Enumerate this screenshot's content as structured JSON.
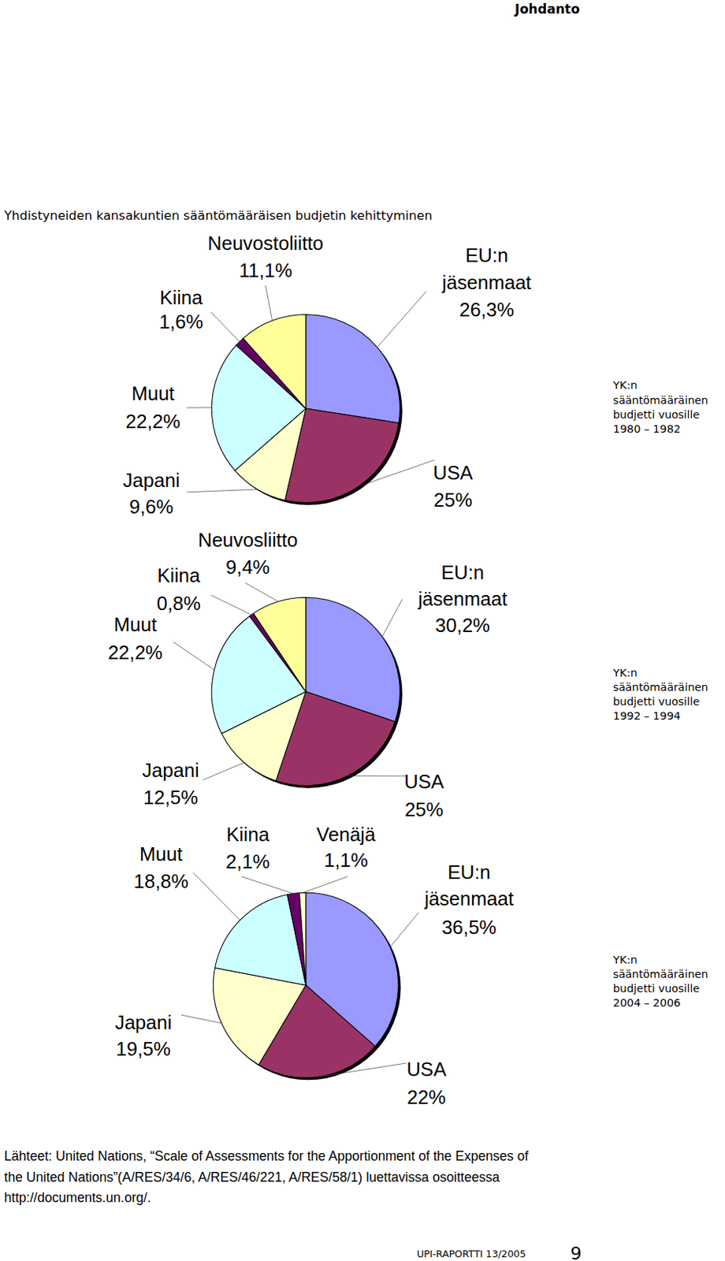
{
  "page": {
    "header": "Johdanto",
    "caption": "Yhdistyneiden kansakuntien sääntömääräisen budjetin kehittyminen",
    "source": "Lähteet: United Nations, “Scale of Assessments for the Apportionment of the Expenses of the United Nations”(A/RES/34/6, A/RES/46/221, A/RES/58/1) luettavissa osoitteessa http://documents.un.org/.",
    "footer": "UPI-RAPORTTI 13/2005",
    "page_number": 9
  },
  "chart_data": [
    {
      "type": "pie",
      "title": "YK:n sääntömääräinen budjetti vuosille 1980 – 1982",
      "categories": [
        "EU:n jäsenmaat",
        "USA",
        "Japani",
        "Muut",
        "Kiina",
        "Neuvostoliitto"
      ],
      "values": [
        26.3,
        25,
        9.6,
        22.2,
        1.6,
        11.1
      ],
      "value_labels": [
        "26,3%",
        "25%",
        "9,6%",
        "22,2%",
        "1,6%",
        "11,1%"
      ],
      "colors": [
        "#9999ff",
        "#993366",
        "#ffffcc",
        "#ccffff",
        "#660066",
        "#ffff99"
      ],
      "data_labels": true
    },
    {
      "type": "pie",
      "title": "YK:n sääntömääräinen budjetti vuosille 1992 – 1994",
      "categories": [
        "EU:n jäsenmaat",
        "USA",
        "Japani",
        "Muut",
        "Kiina",
        "Neuvosliitto"
      ],
      "values": [
        30.2,
        25,
        12.5,
        22.2,
        0.8,
        9.4
      ],
      "value_labels": [
        "30,2%",
        "25%",
        "12,5%",
        "22,2%",
        "0,8%",
        "9,4%"
      ],
      "colors": [
        "#9999ff",
        "#993366",
        "#ffffcc",
        "#ccffff",
        "#660066",
        "#ffff99"
      ],
      "data_labels": true
    },
    {
      "type": "pie",
      "title": "YK:n sääntömääräinen budjetti vuosille 2004 – 2006",
      "categories": [
        "EU:n jäsenmaat",
        "USA",
        "Japani",
        "Muut",
        "Kiina",
        "Venäjä"
      ],
      "values": [
        36.5,
        22,
        19.5,
        18.8,
        2.1,
        1.1
      ],
      "value_labels": [
        "36,5%",
        "22%",
        "19,5%",
        "18,8%",
        "2,1%",
        "1,1%"
      ],
      "colors": [
        "#9999ff",
        "#993366",
        "#ffffcc",
        "#ccffff",
        "#660066",
        "#ffffcc"
      ],
      "data_labels": true
    }
  ]
}
